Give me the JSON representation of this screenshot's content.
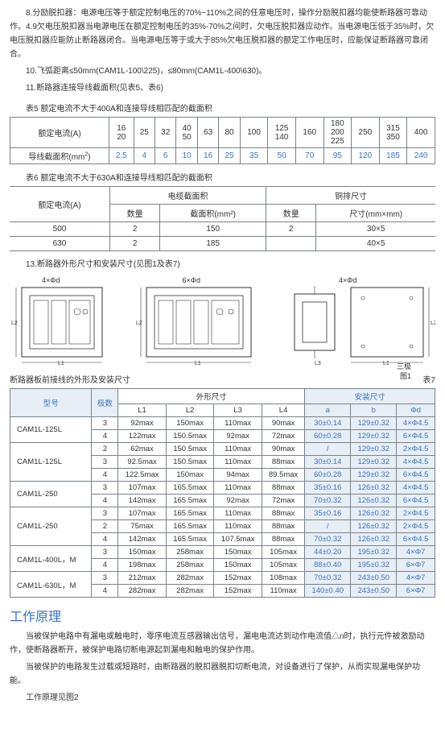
{
  "colors": {
    "accent": "#3b74b9",
    "border": "#7a828a",
    "shade_bg": "#e8eef6"
  },
  "para8": "8.分励脱扣器：电源电压等于额定控制电压的70%~110%之间的任意电压时，操作分励脱扣器均能使断路器可靠动作。4.9欠电压脱扣器当电源电压在额定控制电压的35%-70%之间时，欠电压脱扣器应动作。当电源电压低于35%时，欠电压脱扣器应能防止断路器闭合。当电源电压等于或大于85%欠电压脱扣器的额定工作电压时，应能保证断路器可靠闭合。",
  "para10": "10.飞弧距离≤50mm(CAM1L-100\\225)，≤80mm(CAM1L-400\\630)。",
  "para11": "11.断路器连接导线截面积(见表5、表6)",
  "table5_title": "表5 额定电流不大于400A和连接导线相匹配的截面积",
  "table5": {
    "row1_label": "额定电流(A)",
    "row2_label": "导线截面积(mm²)",
    "cols": [
      {
        "a": "16\n20",
        "b": "2.5"
      },
      {
        "a": "25",
        "b": "4"
      },
      {
        "a": "32",
        "b": "6"
      },
      {
        "a": "40\n50",
        "b": "10"
      },
      {
        "a": "63",
        "b": "16"
      },
      {
        "a": "80",
        "b": "25"
      },
      {
        "a": "100",
        "b": "35"
      },
      {
        "a": "125\n140",
        "b": "50"
      },
      {
        "a": "160",
        "b": "70"
      },
      {
        "a": "180\n200\n225",
        "b": "95"
      },
      {
        "a": "250",
        "b": "120"
      },
      {
        "a": "315\n350",
        "b": "185"
      },
      {
        "a": "400",
        "b": "240"
      }
    ]
  },
  "table6_title": "表6 额定电流不大于630A和连接导线相匹配的截面积",
  "table6": {
    "h1": "额定电流(A)",
    "h2": "电缆截面积",
    "h3": "铜排尺寸",
    "h2a": "数量",
    "h2b": "截面积(mm²)",
    "h3a": "数量",
    "h3b": "尺寸(mm×mm)",
    "rows": [
      {
        "a": "500",
        "q1": "2",
        "s1": "150",
        "q2": "2",
        "s2": "30×5"
      },
      {
        "a": "630",
        "q1": "2",
        "s1": "185",
        "q2": "",
        "s2": "40×5"
      }
    ]
  },
  "para13": "13.断路器外形尺寸和安装尺寸(见图1及表7)",
  "diagram_labels": {
    "d1": "4×Φd",
    "d2": "6×Φd",
    "d3": "4×Φd",
    "fig": "图1",
    "pole": "三极"
  },
  "subtitle": "断路器板前接线的外形及安装尺寸",
  "subtitle_right": "表7",
  "table7": {
    "h_model": "型号",
    "h_poles": "极数",
    "h_outer": "外形尺寸",
    "h_install": "安装尺寸",
    "sub_outer": [
      "L1",
      "L2",
      "L3",
      "L4"
    ],
    "sub_install": [
      "a",
      "b",
      "Φd"
    ],
    "rows": [
      {
        "model": "CAM1L-125L",
        "poles": "3",
        "L1": "92max",
        "L2": "150max",
        "L3": "110max",
        "L4": "90max",
        "a": "30±0.14",
        "b": "129±0.32",
        "d": "4×Φ4.5"
      },
      {
        "model": "",
        "poles": "4",
        "L1": "122max",
        "L2": "150.5max",
        "L3": "92max",
        "L4": "72max",
        "a": "60±0.28",
        "b": "129±0.32",
        "d": "6×Φ4.5"
      },
      {
        "model": "CAM1L-125L",
        "poles": "2",
        "L1": "62max",
        "L2": "150.5max",
        "L3": "110max",
        "L4": "90max",
        "a": "/",
        "b": "129±0.32",
        "d": "2×Φ4.5"
      },
      {
        "model": "",
        "poles": "3",
        "L1": "92.5max",
        "L2": "150.5max",
        "L3": "110max",
        "L4": "88max",
        "a": "30±0.14",
        "b": "129±0.32",
        "d": "4×Φ4.5"
      },
      {
        "model": "",
        "poles": "4",
        "L1": "122.5max",
        "L2": "150max",
        "L3": "94max",
        "L4": "89.5max",
        "a": "60±0.28",
        "b": "129±0.32",
        "d": "6×Φ4.5"
      },
      {
        "model": "CAM1L-250",
        "poles": "3",
        "L1": "107max",
        "L2": "165.5max",
        "L3": "110max",
        "L4": "88max",
        "a": "35±0.16",
        "b": "126±0.32",
        "d": "4×Φ4.5"
      },
      {
        "model": "",
        "poles": "4",
        "L1": "142max",
        "L2": "165.5max",
        "L3": "92max",
        "L4": "72max",
        "a": "70±0.32",
        "b": "126±0.32",
        "d": "6×Φ4.5"
      },
      {
        "model": "CAM1L-250",
        "poles": "3",
        "L1": "107max",
        "L2": "165.5max",
        "L3": "110max",
        "L4": "88max",
        "a": "35±0.16",
        "b": "126±0.32",
        "d": "2×Φ4.5"
      },
      {
        "model": "",
        "poles": "2",
        "L1": "75max",
        "L2": "165.5max",
        "L3": "110max",
        "L4": "88max",
        "a": "/",
        "b": "126±0.32",
        "d": "2×Φ4.5"
      },
      {
        "model": "",
        "poles": "4",
        "L1": "142max",
        "L2": "165.5max",
        "L3": "107.5max",
        "L4": "88max",
        "a": "70±0.32",
        "b": "126±0.32",
        "d": "6×Φ4.5"
      },
      {
        "model": "CAM1L-400L，M",
        "poles": "3",
        "L1": "150max",
        "L2": "258max",
        "L3": "150max",
        "L4": "105max",
        "a": "44±0.20",
        "b": "195±0.32",
        "d": "4×Φ7"
      },
      {
        "model": "",
        "poles": "4",
        "L1": "198max",
        "L2": "258max",
        "L3": "150max",
        "L4": "105max",
        "a": "88±0.40",
        "b": "195±0.32",
        "d": "6×Φ7"
      },
      {
        "model": "CAM1L-630L，M",
        "poles": "3",
        "L1": "212max",
        "L2": "282max",
        "L3": "152max",
        "L4": "108max",
        "a": "70±0.32",
        "b": "243±0.50",
        "d": "4×Φ7"
      },
      {
        "model": "",
        "poles": "4",
        "L1": "282max",
        "L2": "282max",
        "L3": "152max",
        "L4": "110max",
        "a": "140±0.40",
        "b": "243±0.50",
        "d": "6×Φ7"
      }
    ]
  },
  "section_title": "工作原理",
  "principle_p1": "当被保护电路中有漏电或触电时，零序电流互感器输出信号，漏电电流达到动作电流值△n时，执行元件被激励动作，使断路器断开，被保护电路切断电源起到漏电和触电的保护作用。",
  "principle_p2": "当被保护的电路发生过载或短路时，由断路器的脱扣器脱扣切断电流，对设备进行了保护，从而实现漏电保护功能。",
  "principle_p3": "工作原理见图2"
}
